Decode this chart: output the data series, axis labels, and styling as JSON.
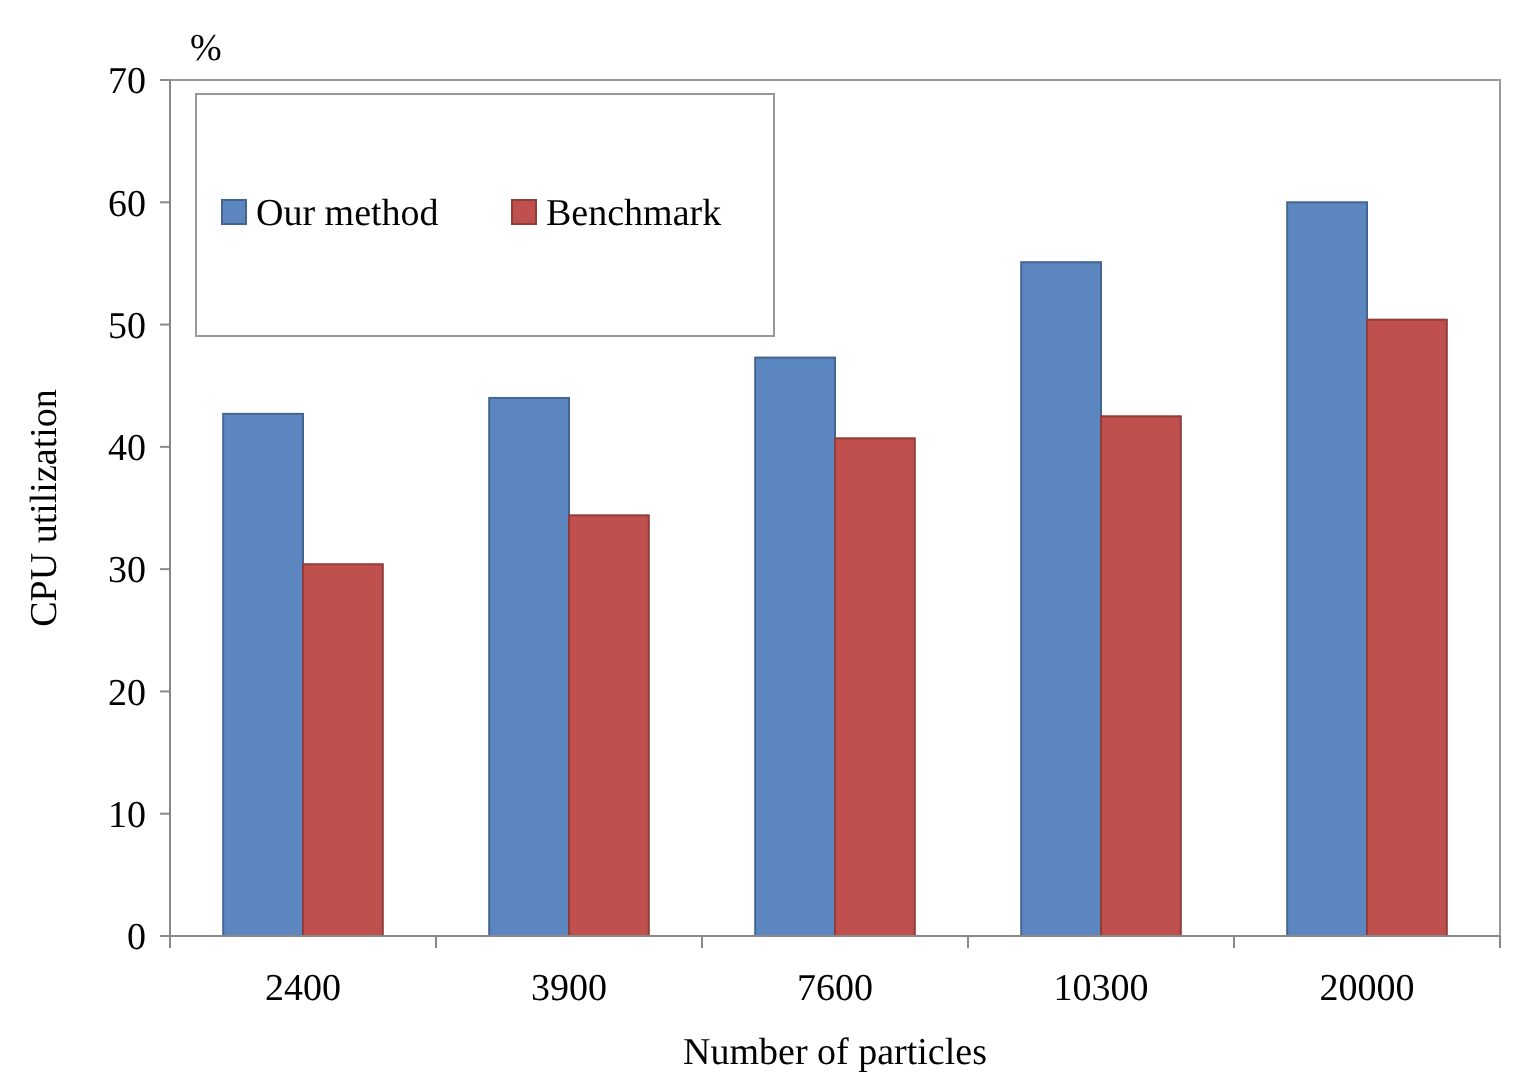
{
  "chart_data": {
    "type": "bar",
    "xlabel": "Number of particles",
    "ylabel": "CPU utilization",
    "annotations": [
      "%"
    ],
    "categories": [
      "2400",
      "3900",
      "7600",
      "10300",
      "20000"
    ],
    "series": [
      {
        "name": "Our method",
        "color": "#5b86c0",
        "values": [
          42.7,
          44.0,
          47.3,
          55.1,
          60.0
        ]
      },
      {
        "name": "Benchmark",
        "color": "#c0504d",
        "values": [
          30.4,
          34.4,
          40.7,
          42.5,
          50.4
        ]
      }
    ],
    "ylim": [
      0,
      70
    ],
    "yticks": [
      0,
      10,
      20,
      30,
      40,
      50,
      60,
      70
    ],
    "grid": false,
    "legend": "top left"
  }
}
